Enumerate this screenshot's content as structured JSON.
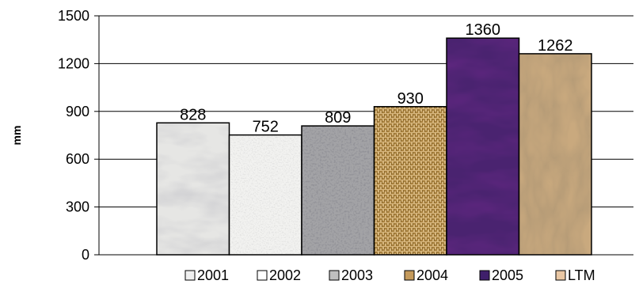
{
  "chart_data": {
    "type": "bar",
    "title": "",
    "xlabel": "",
    "ylabel": "mm",
    "ylim": [
      0,
      1500
    ],
    "yticks": [
      0,
      300,
      600,
      900,
      1200,
      1500
    ],
    "grid": "horizontal",
    "legend_position": "bottom",
    "categories": [
      "2001",
      "2002",
      "2003",
      "2004",
      "2005",
      "LTM"
    ],
    "values": [
      828,
      752,
      809,
      930,
      1360,
      1262
    ],
    "data_labels": [
      "828",
      "752",
      "809",
      "930",
      "1360",
      "1262"
    ],
    "colors": [
      "#e6e6e4",
      "#f2f2f0",
      "#a3a3a6",
      "#c9a56c",
      "#4a2370",
      "#c9a97e"
    ],
    "legend_swatch_colors": [
      "#f0f0f0",
      "#ffffff",
      "#bfbfbf",
      "#c49a5c",
      "#3f1f6b",
      "#e9c7a4"
    ]
  }
}
